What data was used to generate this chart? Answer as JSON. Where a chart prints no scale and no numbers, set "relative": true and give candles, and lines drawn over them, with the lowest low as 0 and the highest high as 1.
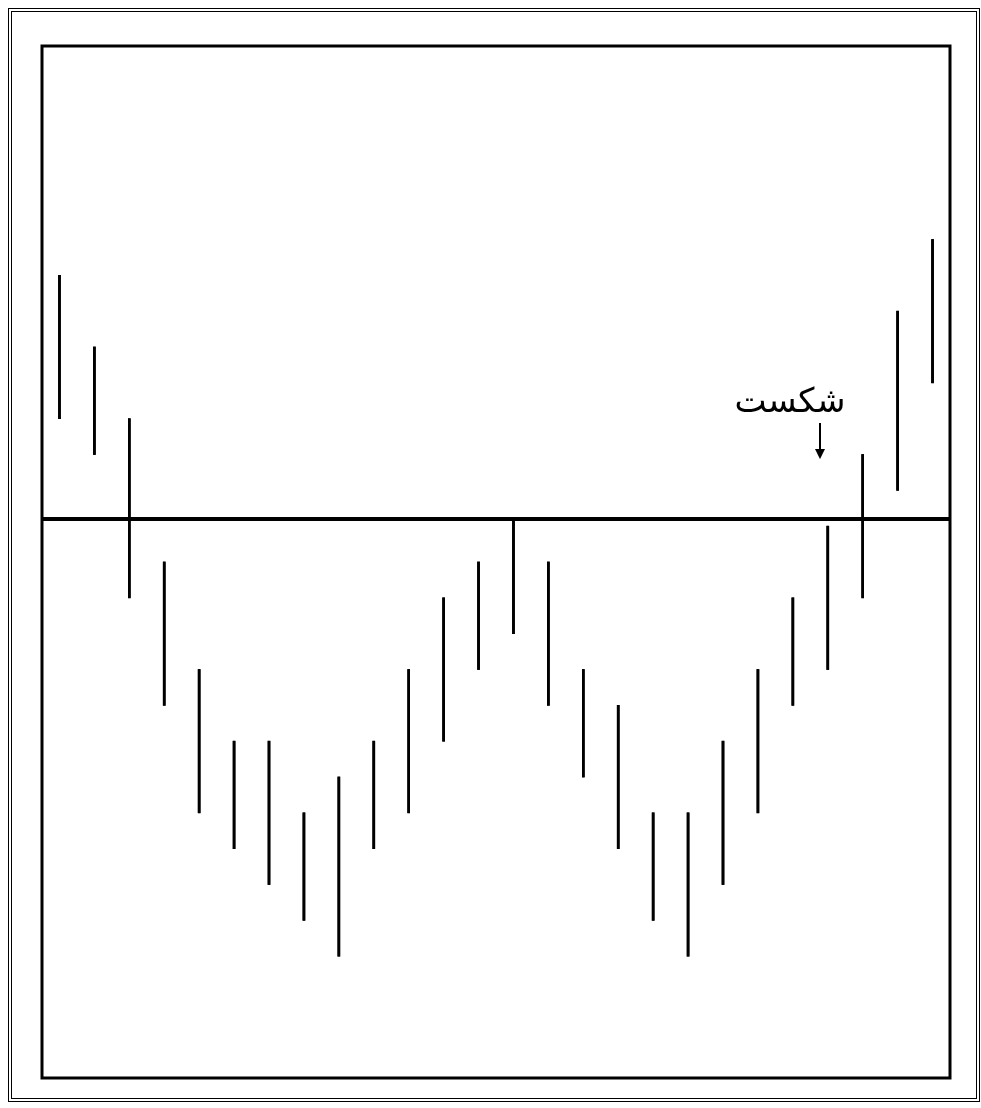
{
  "chart_data": {
    "type": "candlestick",
    "relative": true,
    "categories": [
      null,
      null,
      null,
      null,
      null,
      null,
      null,
      null,
      null,
      null,
      null,
      null,
      null,
      null,
      null,
      null,
      null,
      null,
      null,
      null,
      null,
      null,
      null,
      null,
      null,
      null
    ],
    "ohlc": [
      [
        0.75,
        0.95,
        0.75,
        0.95
      ],
      [
        0.7,
        0.85,
        0.7,
        0.85
      ],
      [
        0.5,
        0.75,
        0.5,
        0.75
      ],
      [
        0.35,
        0.55,
        0.35,
        0.55
      ],
      [
        0.2,
        0.4,
        0.2,
        0.4
      ],
      [
        0.15,
        0.3,
        0.15,
        0.3
      ],
      [
        0.1,
        0.3,
        0.1,
        0.3
      ],
      [
        0.05,
        0.2,
        0.05,
        0.2
      ],
      [
        0,
        0.25,
        0,
        0.25
      ],
      [
        0.15,
        0.3,
        0.15,
        0.3
      ],
      [
        0.2,
        0.4,
        0.2,
        0.4
      ],
      [
        0.3,
        0.5,
        0.3,
        0.5
      ],
      [
        0.4,
        0.55,
        0.4,
        0.55
      ],
      [
        0.45,
        0.61,
        0.45,
        0.61
      ],
      [
        0.35,
        0.55,
        0.35,
        0.55
      ],
      [
        0.25,
        0.4,
        0.25,
        0.4
      ],
      [
        0.15,
        0.35,
        0.15,
        0.35
      ],
      [
        0.05,
        0.2,
        0.05,
        0.2
      ],
      [
        0,
        0.2,
        0,
        0.2
      ],
      [
        0.1,
        0.3,
        0.1,
        0.3
      ],
      [
        0.2,
        0.4,
        0.2,
        0.4
      ],
      [
        0.35,
        0.5,
        0.35,
        0.5
      ],
      [
        0.4,
        0.6,
        0.4,
        0.6
      ],
      [
        0.5,
        0.7,
        0.5,
        0.7
      ],
      [
        0.65,
        0.9,
        0.65,
        0.9
      ],
      [
        0.8,
        1,
        0.8,
        1
      ]
    ],
    "color": "#000000",
    "ref_lines": [
      {
        "axis": "y",
        "value": 0.61,
        "color": "#000000"
      }
    ],
    "annotations": [
      "شکست"
    ],
    "legend": false
  }
}
